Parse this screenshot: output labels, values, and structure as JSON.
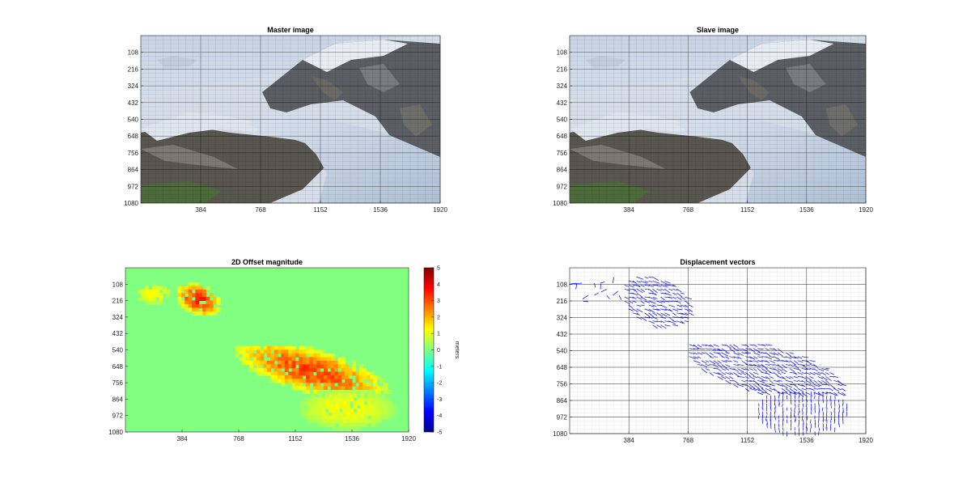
{
  "colors": {
    "background": "#ffffff",
    "grid": "#000000",
    "offset_background": "#80ff80",
    "vector_color": "#0000ff"
  },
  "chart_data": [
    {
      "type": "image",
      "title": "Master image",
      "xlabel": "",
      "ylabel": "",
      "xlim": [
        0,
        1920
      ],
      "ylim": [
        1080,
        0
      ],
      "x_ticks": [
        "384",
        "768",
        "1152",
        "1536",
        "1920"
      ],
      "y_ticks": [
        "108",
        "216",
        "324",
        "432",
        "540",
        "648",
        "756",
        "864",
        "972",
        "1080"
      ],
      "grid": true,
      "content": "glacier photograph"
    },
    {
      "type": "image",
      "title": "Slave image",
      "xlabel": "",
      "ylabel": "",
      "xlim": [
        0,
        1920
      ],
      "ylim": [
        1080,
        0
      ],
      "x_ticks": [
        "384",
        "768",
        "1152",
        "1536",
        "1920"
      ],
      "y_ticks": [
        "108",
        "216",
        "324",
        "432",
        "540",
        "648",
        "756",
        "864",
        "972",
        "1080"
      ],
      "grid": true,
      "content": "glacier photograph"
    },
    {
      "type": "heatmap",
      "title": "2D Offset magnitude",
      "xlim": [
        0,
        1920
      ],
      "ylim": [
        1080,
        0
      ],
      "x_ticks": [
        "384",
        "768",
        "1152",
        "1536",
        "1920"
      ],
      "y_ticks": [
        "108",
        "216",
        "324",
        "432",
        "540",
        "648",
        "756",
        "864",
        "972",
        "1080"
      ],
      "colorbar": {
        "label": "meters",
        "range": [
          -5,
          5
        ],
        "ticks": [
          "5",
          "4",
          "3",
          "2",
          "1",
          "0",
          "-1",
          "-2",
          "-3",
          "-4",
          "-5"
        ],
        "colormap": "jet"
      },
      "background_value": 0,
      "regions": [
        {
          "name": "upper glacier",
          "x": [
            330,
            640
          ],
          "y": [
            95,
            300
          ],
          "peak": 3.6
        },
        {
          "name": "upper spots",
          "x": [
            60,
            300
          ],
          "y": [
            95,
            225
          ],
          "peak": 1.5
        },
        {
          "name": "lower glacier",
          "x": [
            720,
            1780
          ],
          "y": [
            515,
            820
          ],
          "peak": 3.2
        },
        {
          "name": "terminus",
          "x": [
            1160,
            1820
          ],
          "y": [
            780,
            1050
          ],
          "peak": 1.3
        }
      ]
    },
    {
      "type": "quiver",
      "title": "Displacement vectors",
      "xlim": [
        0,
        1920
      ],
      "ylim": [
        1080,
        0
      ],
      "x_ticks": [
        "384",
        "768",
        "1152",
        "1536",
        "1920"
      ],
      "y_ticks": [
        "108",
        "216",
        "324",
        "432",
        "540",
        "648",
        "756",
        "864",
        "972",
        "1080"
      ],
      "grid": true,
      "regions": [
        {
          "name": "upper glacier",
          "x": [
            330,
            780
          ],
          "y": [
            60,
            380
          ]
        },
        {
          "name": "upper left",
          "x": [
            0,
            330
          ],
          "y": [
            60,
            240
          ]
        },
        {
          "name": "lower glacier",
          "x": [
            750,
            1790
          ],
          "y": [
            500,
            830
          ]
        },
        {
          "name": "terminus",
          "x": [
            1200,
            1820
          ],
          "y": [
            780,
            1080
          ]
        }
      ]
    }
  ]
}
